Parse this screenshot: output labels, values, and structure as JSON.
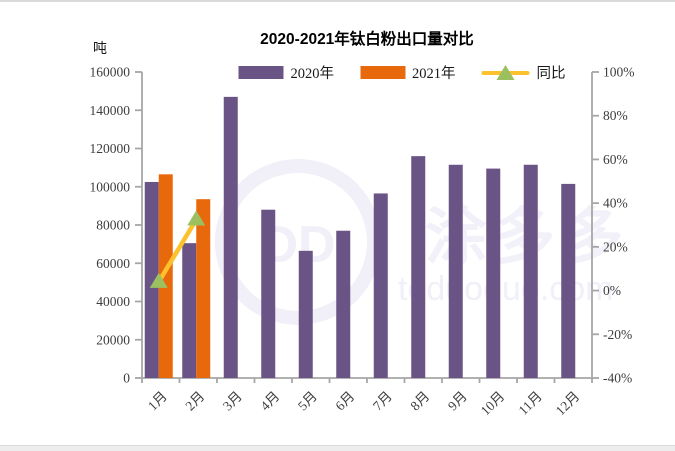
{
  "page": {
    "background": "#ffffff",
    "top_border_color": "#d9d9d9",
    "bottom_strip_color": "#ededed"
  },
  "chart": {
    "title": "2020-2021年钛白粉出口量对比",
    "unit_label": "吨",
    "legend": [
      {
        "label": "2020年",
        "type": "bar",
        "color": "#6a5486"
      },
      {
        "label": "2021年",
        "type": "bar",
        "color": "#e8690b"
      },
      {
        "label": "同比",
        "type": "line-triangle",
        "line_color": "#fcc12d",
        "marker_color": "#9cc05f"
      }
    ],
    "watermark": {
      "monogram": "DD",
      "cn_text": "涂多多",
      "url_text": "toduoduo.com"
    }
  },
  "chart_data": {
    "type": "bar",
    "title": "2020-2021年钛白粉出口量对比",
    "categories": [
      "1月",
      "2月",
      "3月",
      "4月",
      "5月",
      "6月",
      "7月",
      "8月",
      "9月",
      "10月",
      "11月",
      "12月"
    ],
    "series": [
      {
        "name": "2020年",
        "axis": "left",
        "color": "#6a5486",
        "values": [
          102500,
          70500,
          147000,
          88000,
          66500,
          77000,
          96500,
          116000,
          111500,
          109500,
          111500,
          101500
        ]
      },
      {
        "name": "2021年",
        "axis": "left",
        "color": "#e8690b",
        "values": [
          106500,
          93500,
          null,
          null,
          null,
          null,
          null,
          null,
          null,
          null,
          null,
          null
        ]
      }
    ],
    "line_series": {
      "name": "同比",
      "axis": "right",
      "line_color": "#fcc12d",
      "marker_color": "#9cc05f",
      "values": [
        4,
        32.5,
        null,
        null,
        null,
        null,
        null,
        null,
        null,
        null,
        null,
        null
      ]
    },
    "left_axis": {
      "unit": "吨",
      "min": 0,
      "max": 160000,
      "step": 20000,
      "ticks": [
        0,
        20000,
        40000,
        60000,
        80000,
        100000,
        120000,
        140000,
        160000
      ]
    },
    "right_axis": {
      "suffix": "%",
      "min": -40,
      "max": 100,
      "step": 20,
      "ticks": [
        -40,
        -20,
        0,
        20,
        40,
        60,
        80,
        100
      ]
    },
    "grid": false,
    "legend_position": "top",
    "axis_color": "#a6a6a6",
    "tick_label_color": "#3d3d3d"
  }
}
